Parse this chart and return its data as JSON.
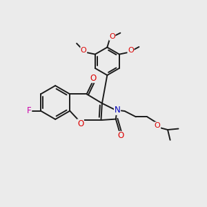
{
  "bg_color": "#ebebeb",
  "bond_color": "#1a1a1a",
  "bond_width": 1.4,
  "atom_colors": {
    "O": "#dd0000",
    "N": "#0000bb",
    "F": "#cc00aa"
  },
  "figsize": [
    3.0,
    3.0
  ],
  "dpi": 100
}
